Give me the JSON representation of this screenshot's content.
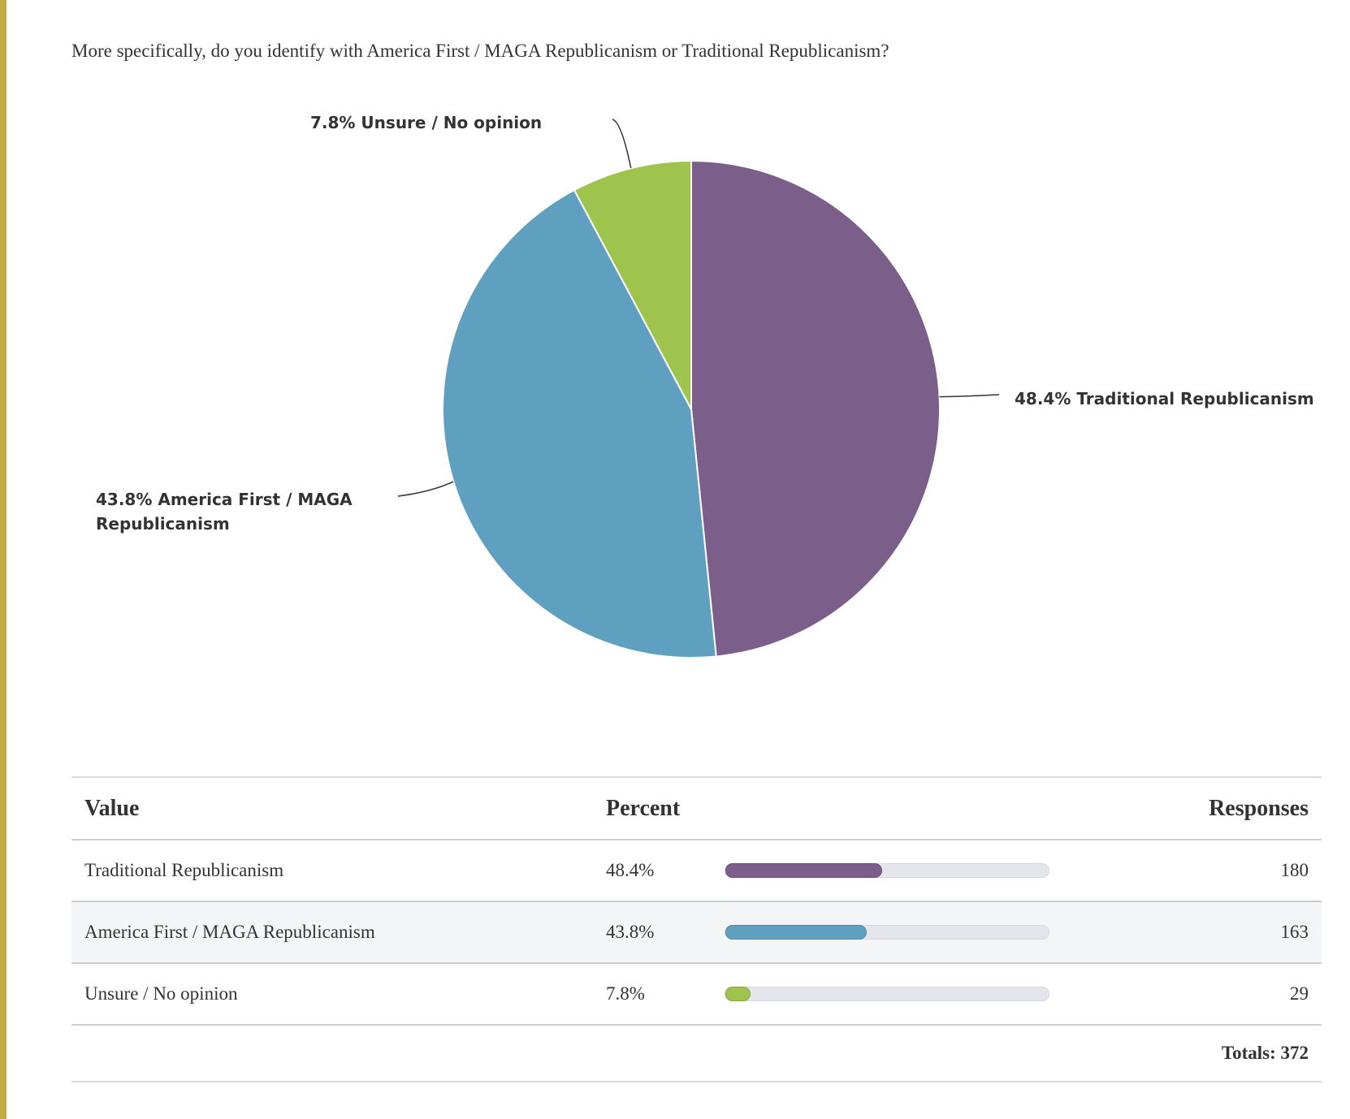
{
  "question": "More specifically, do you identify with America First / MAGA Republicanism or Traditional Republicanism?",
  "colors": {
    "left_rule": "#c4ac45",
    "traditional": "#7b5f8a",
    "maga": "#5fa0c1",
    "unsure": "#9fc44d"
  },
  "chart_data": {
    "type": "pie",
    "slices": [
      {
        "label": "48.4% Traditional Republicanism",
        "category": "Traditional Republicanism",
        "value": 48.4,
        "color": "#7b5f8a"
      },
      {
        "label": "43.8% America First / MAGA Republicanism",
        "category": "America First / MAGA Republicanism",
        "value": 43.8,
        "color": "#5fa0c1"
      },
      {
        "label": "7.8% Unsure / No opinion",
        "category": "Unsure / No opinion",
        "value": 7.8,
        "color": "#9fc44d"
      }
    ]
  },
  "table": {
    "headers": {
      "value": "Value",
      "percent": "Percent",
      "responses": "Responses"
    },
    "rows": [
      {
        "value": "Traditional Republicanism",
        "percent": "48.4%",
        "fraction": 0.484,
        "responses": "180",
        "color": "#7b5f8a"
      },
      {
        "value": "America First / MAGA Republicanism",
        "percent": "43.8%",
        "fraction": 0.438,
        "responses": "163",
        "color": "#5fa0c1"
      },
      {
        "value": "Unsure / No opinion",
        "percent": "7.8%",
        "fraction": 0.078,
        "responses": "29",
        "color": "#9fc44d"
      }
    ],
    "totals": "Totals: 372"
  }
}
